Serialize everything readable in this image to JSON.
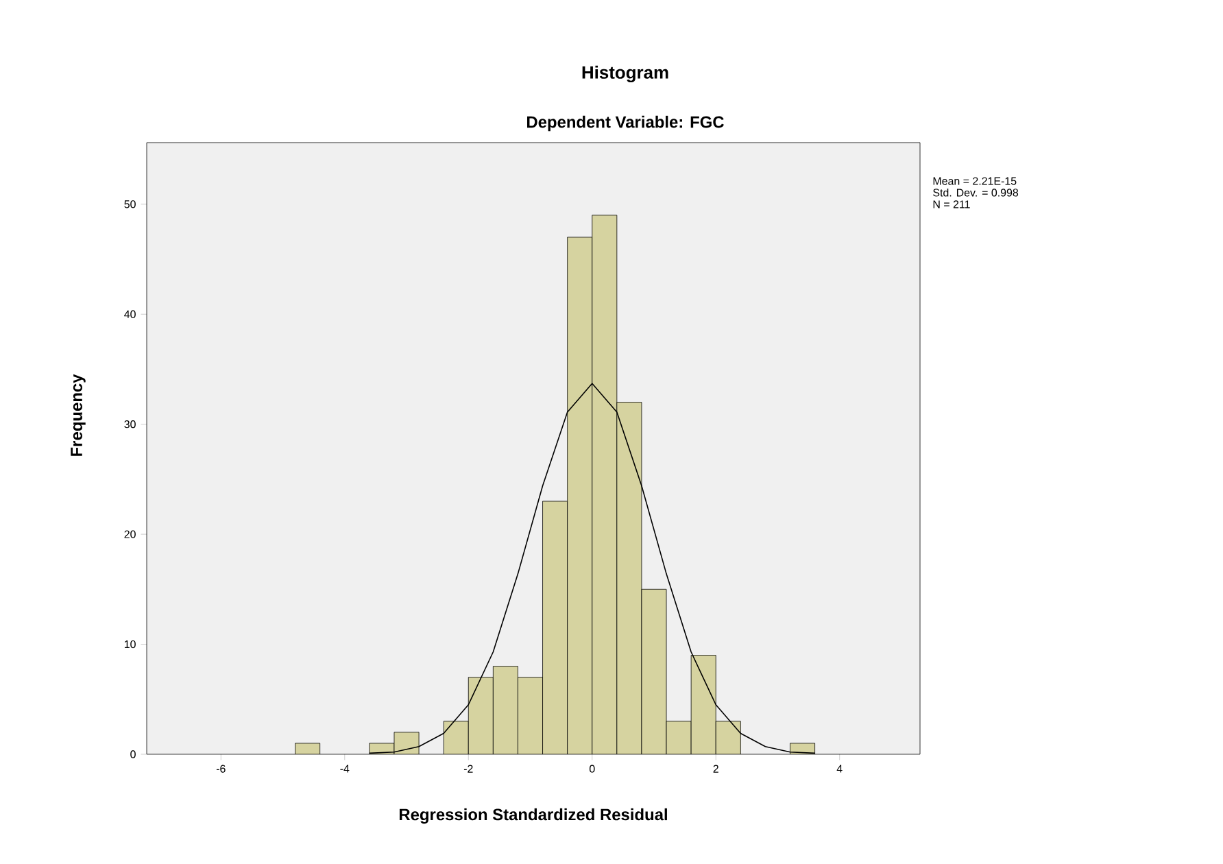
{
  "chart_data": {
    "type": "histogram",
    "title": "Histogram",
    "subtitle": "Dependent Variable: FGC",
    "xlabel": "Regression Standardized Residual",
    "ylabel": "Frequency",
    "bins": [
      -4.8,
      -4.4,
      -4.0,
      -3.6,
      -3.2,
      -2.8,
      -2.4,
      -2.0,
      -1.6,
      -1.2,
      -0.8,
      -0.4,
      0,
      0.4,
      0.8,
      1.2,
      1.6,
      2.0,
      2.4,
      2.8,
      3.2,
      3.6
    ],
    "values": [
      1,
      0,
      0,
      1,
      2,
      0,
      3,
      7,
      8,
      7,
      23,
      47,
      49,
      32,
      15,
      3,
      9,
      3,
      0,
      0,
      1
    ],
    "color": "#d6d3a0",
    "series": [
      {
        "type": "line",
        "color": "#000000",
        "x": [
          -3.6,
          -3.2,
          -2.8,
          -2.4,
          -2.0,
          -1.6,
          -1.2,
          -0.8,
          -0.4,
          0,
          0.4,
          0.8,
          1.2,
          1.6,
          2.0,
          2.4,
          2.8,
          3.2,
          3.6
        ],
        "values": [
          0.1,
          0.2,
          0.7,
          1.9,
          4.5,
          9.3,
          16.4,
          24.4,
          31.1,
          33.7,
          31.1,
          24.4,
          16.4,
          9.3,
          4.5,
          1.9,
          0.7,
          0.2,
          0.1
        ]
      }
    ],
    "xlim": [
      -7.2,
      5.3
    ],
    "ylim": [
      0,
      55.6
    ],
    "xticks": [
      -6,
      -4,
      -2,
      0,
      2,
      4
    ],
    "yticks": [
      0,
      10,
      20,
      30,
      40,
      50
    ],
    "grid": false,
    "annotations": [
      "Mean = 2.21E-15",
      "Std. Dev. = 0.998",
      "N = 211"
    ]
  }
}
